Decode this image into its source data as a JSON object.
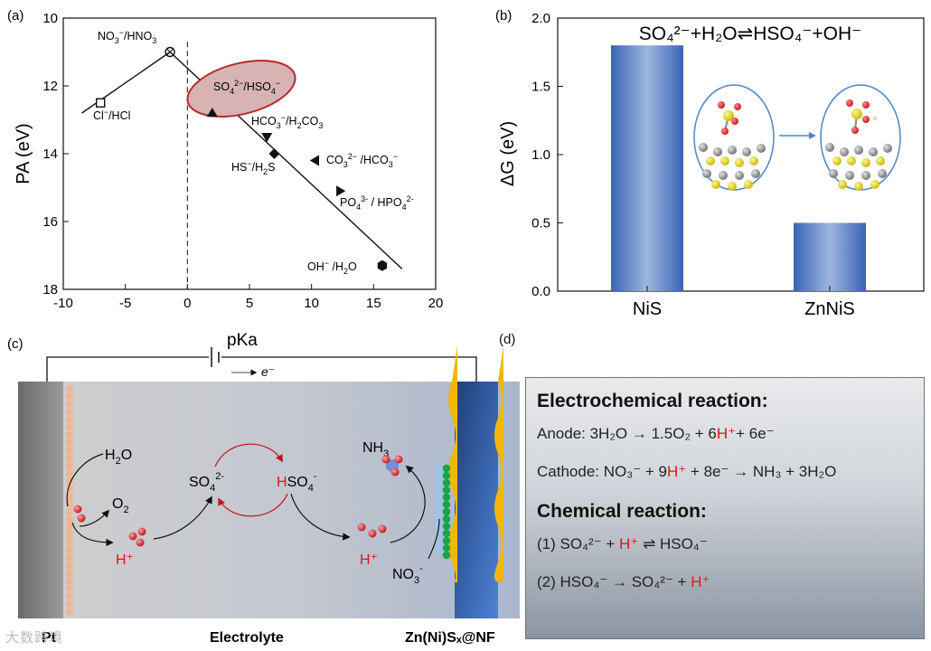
{
  "panel_labels": {
    "a": "(a)",
    "b": "(b)",
    "c": "(c)",
    "d": "(d)"
  },
  "chart_data": [
    {
      "type": "scatter",
      "panel": "(a)",
      "xlabel": "pKa",
      "ylabel": "PA (eV)",
      "xlim": [
        -10,
        20
      ],
      "ylim": [
        10,
        18
      ],
      "y_inverted": true,
      "xticks": [
        -10,
        -5,
        0,
        5,
        10,
        15,
        20
      ],
      "yticks": [
        10,
        12,
        14,
        16,
        18
      ],
      "points": [
        {
          "label": "NO3-/HNO3",
          "x": -1.4,
          "y": 11.0,
          "marker": "circle-x"
        },
        {
          "label": "Cl-/HCl",
          "x": -7.0,
          "y": 12.5,
          "marker": "square"
        },
        {
          "label": "SO42-/HSO4-",
          "x": 2.0,
          "y": 12.8,
          "marker": "triangle-up"
        },
        {
          "label": "HCO3-/H2CO3",
          "x": 6.4,
          "y": 13.5,
          "marker": "triangle-down"
        },
        {
          "label": "HS-/H2S",
          "x": 7.0,
          "y": 14.0,
          "marker": "diamond"
        },
        {
          "label": "CO32-/HCO3-",
          "x": 10.3,
          "y": 14.2,
          "marker": "triangle-left"
        },
        {
          "label": "PO43-/HPO42-",
          "x": 12.3,
          "y": 15.1,
          "marker": "triangle-right"
        },
        {
          "label": "OH-/H2O",
          "x": 15.7,
          "y": 17.3,
          "marker": "hexagon"
        }
      ],
      "fit_lines": [
        {
          "x": [
            -8.5,
            -1.4
          ],
          "y": [
            12.8,
            11.0
          ]
        },
        {
          "x": [
            -1.4,
            17.3
          ],
          "y": [
            11.0,
            17.4
          ]
        }
      ],
      "dashed_vertical_x": 0,
      "highlight": "SO42-/HSO4-"
    },
    {
      "type": "bar",
      "panel": "(b)",
      "title": "SO₄²⁻+H₂O⇌HSO₄⁻+OH⁻",
      "categories": [
        "NiS",
        "ZnNiS"
      ],
      "values": [
        1.8,
        0.5
      ],
      "ylabel": "ΔG (eV)",
      "ylim": [
        0.0,
        2.0
      ],
      "yticks": [
        "0.0",
        "0.5",
        "1.0",
        "1.5",
        "2.0"
      ]
    }
  ],
  "diagram_c": {
    "circuit_label": "pKa",
    "electron_label": "e⁻",
    "left_electrode": "Pt",
    "middle": "Electrolyte",
    "right_electrode": "Zn(Ni)Sₓ@NF",
    "species": {
      "h2o": "H₂O",
      "o2": "O₂",
      "h_plus": "H⁺",
      "so4": "SO₄²⁻",
      "hso4_h": "H",
      "hso4_rest": "SO₄⁻",
      "nh3": "NH₃",
      "no3": "NO₃⁻"
    }
  },
  "panel_d": {
    "electrochem_title": "Electrochemical reaction:",
    "anode_prefix": "Anode: 3H₂O → 1.5O₂ + 6",
    "anode_h": "H⁺",
    "anode_suffix": "+ 6e⁻",
    "cathode_prefix": "Cathode: NO₃⁻ + 9",
    "cathode_h": "H⁺",
    "cathode_suffix": " + 8e⁻ → NH₃ + 3H₂O",
    "chem_title": "Chemical reaction:",
    "r1_prefix": "(1)  SO₄²⁻ + ",
    "r1_h": "H⁺",
    "r1_suffix": " ⇌ HSO₄⁻",
    "r2_prefix": "(2)  HSO₄⁻ → SO₄²⁻ + ",
    "r2_h": "H⁺"
  },
  "watermark": "大数跨境",
  "colors": {
    "bar": "#4b73c2",
    "ellipse": "#c9302c",
    "red": "#e0151b",
    "electrode_right": "#2c5aa0",
    "gold": "#f2b705"
  }
}
